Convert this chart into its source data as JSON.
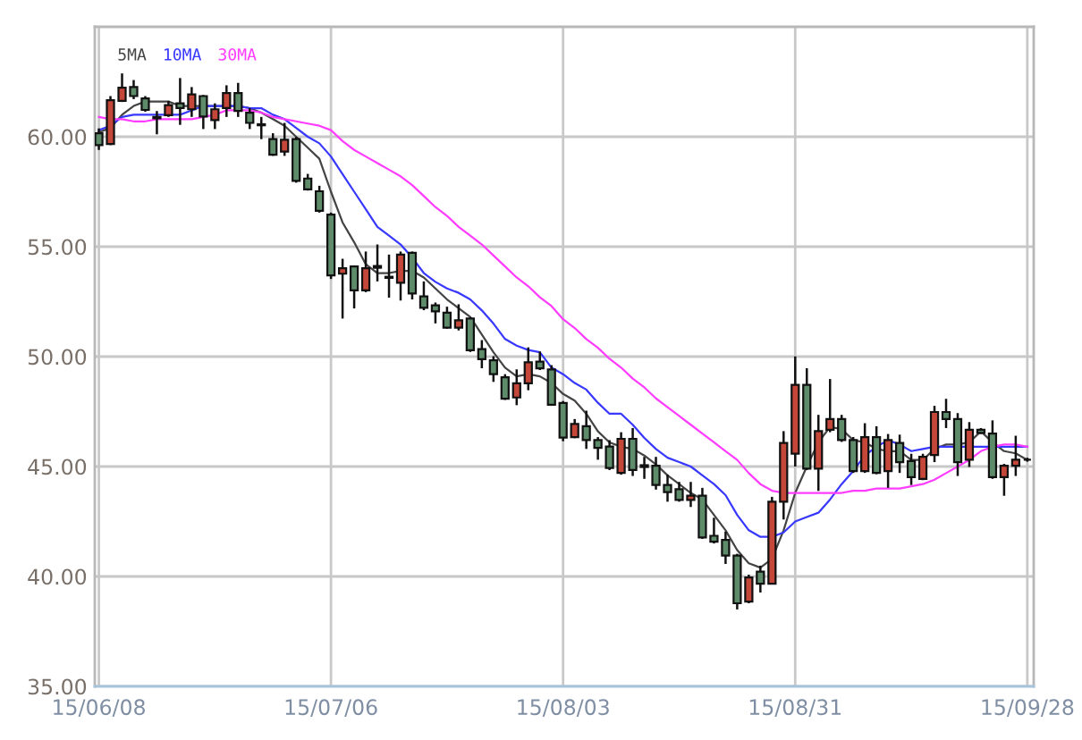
{
  "chart_data": {
    "type": "candlestick",
    "categories": [
      "15/06/08",
      null,
      null,
      null,
      null,
      null,
      null,
      null,
      null,
      null,
      null,
      null,
      null,
      null,
      null,
      null,
      null,
      null,
      null,
      null,
      "15/07/06",
      null,
      null,
      null,
      null,
      null,
      null,
      null,
      null,
      null,
      null,
      null,
      null,
      null,
      null,
      null,
      null,
      null,
      null,
      null,
      "15/08/03",
      null,
      null,
      null,
      null,
      null,
      null,
      null,
      null,
      null,
      null,
      null,
      null,
      null,
      null,
      null,
      null,
      null,
      null,
      null,
      "15/08/31",
      null,
      null,
      null,
      null,
      null,
      null,
      null,
      null,
      null,
      null,
      null,
      null,
      null,
      null,
      null,
      null,
      null,
      null,
      null,
      "15/09/28"
    ],
    "ohlc": [
      [
        60.16,
        60.38,
        59.4,
        59.62
      ],
      [
        59.67,
        61.85,
        59.62,
        61.66
      ],
      [
        61.63,
        62.88,
        61.58,
        62.23
      ],
      [
        62.26,
        62.58,
        61.71,
        61.85
      ],
      [
        61.74,
        61.85,
        61.14,
        61.22
      ],
      [
        60.9,
        61.17,
        60.11,
        60.84
      ],
      [
        60.98,
        61.63,
        60.9,
        61.44
      ],
      [
        61.52,
        62.67,
        60.54,
        61.31
      ],
      [
        61.25,
        62.26,
        60.9,
        61.93
      ],
      [
        61.85,
        61.9,
        60.35,
        60.92
      ],
      [
        60.76,
        61.52,
        60.35,
        61.25
      ],
      [
        61.31,
        62.34,
        60.9,
        61.99
      ],
      [
        61.99,
        62.45,
        60.9,
        61.17
      ],
      [
        61.09,
        61.31,
        60.35,
        60.63
      ],
      [
        60.57,
        60.9,
        59.89,
        60.52
      ],
      [
        59.89,
        60.16,
        59.13,
        59.18
      ],
      [
        59.32,
        60.63,
        59.13,
        59.86
      ],
      [
        59.89,
        60.0,
        57.91,
        57.99
      ],
      [
        58.1,
        58.31,
        57.55,
        57.61
      ],
      [
        57.52,
        57.77,
        56.55,
        56.63
      ],
      [
        56.46,
        56.55,
        53.53,
        53.69
      ],
      [
        53.77,
        54.45,
        51.73,
        54.02
      ],
      [
        54.1,
        54.15,
        52.19,
        53.01
      ],
      [
        53.01,
        54.78,
        52.93,
        54.02
      ],
      [
        54.12,
        55.1,
        53.42,
        54.04
      ],
      [
        53.63,
        54.64,
        52.68,
        53.58
      ],
      [
        53.36,
        54.78,
        52.55,
        54.64
      ],
      [
        54.72,
        54.78,
        52.6,
        52.87
      ],
      [
        52.74,
        53.42,
        52.11,
        52.22
      ],
      [
        52.33,
        52.46,
        51.51,
        52.06
      ],
      [
        52.0,
        52.27,
        51.27,
        51.32
      ],
      [
        51.32,
        52.38,
        51.19,
        51.65
      ],
      [
        51.73,
        51.78,
        50.21,
        50.29
      ],
      [
        50.34,
        50.75,
        49.47,
        49.88
      ],
      [
        49.83,
        50.02,
        48.85,
        49.2
      ],
      [
        49.06,
        49.2,
        48.03,
        48.08
      ],
      [
        48.14,
        49.42,
        47.79,
        48.79
      ],
      [
        48.79,
        50.42,
        48.47,
        49.74
      ],
      [
        49.77,
        50.23,
        49.39,
        49.47
      ],
      [
        49.42,
        49.61,
        47.76,
        47.81
      ],
      [
        47.89,
        47.98,
        46.15,
        46.32
      ],
      [
        46.34,
        47.16,
        46.29,
        46.94
      ],
      [
        46.83,
        47.54,
        45.8,
        46.2
      ],
      [
        46.2,
        46.34,
        45.31,
        45.85
      ],
      [
        45.91,
        46.2,
        44.84,
        44.93
      ],
      [
        44.71,
        46.56,
        44.63,
        46.26
      ],
      [
        46.26,
        46.75,
        44.57,
        44.84
      ],
      [
        45.06,
        45.44,
        44.44,
        44.98
      ],
      [
        45.04,
        45.44,
        43.95,
        44.16
      ],
      [
        44.16,
        44.63,
        43.4,
        43.84
      ],
      [
        43.97,
        44.3,
        43.4,
        43.48
      ],
      [
        43.48,
        44.3,
        43.16,
        43.67
      ],
      [
        43.67,
        44.03,
        41.71,
        41.77
      ],
      [
        41.85,
        42.67,
        41.5,
        41.58
      ],
      [
        41.66,
        42.04,
        40.57,
        40.95
      ],
      [
        40.95,
        41.03,
        38.5,
        38.78
      ],
      [
        38.86,
        40.08,
        38.78,
        39.95
      ],
      [
        40.22,
        40.49,
        39.27,
        39.67
      ],
      [
        39.67,
        43.62,
        39.67,
        43.4
      ],
      [
        43.4,
        46.61,
        42.59,
        46.07
      ],
      [
        45.58,
        50.01,
        45.0,
        48.71
      ],
      [
        48.71,
        49.47,
        44.84,
        44.9
      ],
      [
        44.9,
        47.35,
        43.89,
        46.61
      ],
      [
        46.67,
        48.98,
        46.56,
        47.16
      ],
      [
        47.16,
        47.35,
        46.12,
        46.2
      ],
      [
        46.2,
        46.34,
        44.71,
        44.79
      ],
      [
        44.79,
        46.97,
        44.71,
        46.34
      ],
      [
        46.34,
        46.83,
        44.65,
        44.71
      ],
      [
        44.79,
        46.48,
        44.03,
        46.2
      ],
      [
        46.07,
        46.45,
        44.71,
        45.2
      ],
      [
        45.25,
        45.58,
        44.16,
        44.52
      ],
      [
        44.44,
        45.58,
        44.38,
        45.44
      ],
      [
        45.52,
        47.76,
        45.2,
        47.48
      ],
      [
        47.48,
        48.08,
        46.75,
        47.16
      ],
      [
        47.16,
        47.43,
        44.57,
        45.2
      ],
      [
        45.31,
        47.02,
        44.98,
        46.67
      ],
      [
        46.67,
        46.75,
        46.48,
        46.53
      ],
      [
        46.5,
        47.1,
        44.44,
        44.52
      ],
      [
        44.52,
        45.12,
        43.67,
        45.04
      ],
      [
        45.04,
        46.4,
        44.57,
        45.31
      ],
      [
        45.31,
        45.4,
        45.22,
        45.31
      ]
    ],
    "colors": [
      "#5e8c6b",
      "#c4473a",
      "#c4473a",
      "#5e8c6b",
      "#5e8c6b",
      "#5e8c6b",
      "#c4473a",
      "#5e8c6b",
      "#c4473a",
      "#5e8c6b",
      "#c4473a",
      "#c4473a",
      "#5e8c6b",
      "#5e8c6b",
      "#5e8c6b",
      "#5e8c6b",
      "#c4473a",
      "#5e8c6b",
      "#5e8c6b",
      "#5e8c6b",
      "#5e8c6b",
      "#c4473a",
      "#5e8c6b",
      "#c4473a",
      "#5e8c6b",
      "#5e8c6b",
      "#c4473a",
      "#5e8c6b",
      "#5e8c6b",
      "#5e8c6b",
      "#5e8c6b",
      "#c4473a",
      "#5e8c6b",
      "#5e8c6b",
      "#5e8c6b",
      "#5e8c6b",
      "#c4473a",
      "#c4473a",
      "#5e8c6b",
      "#5e8c6b",
      "#5e8c6b",
      "#c4473a",
      "#5e8c6b",
      "#5e8c6b",
      "#5e8c6b",
      "#c4473a",
      "#5e8c6b",
      "#5e8c6b",
      "#5e8c6b",
      "#5e8c6b",
      "#5e8c6b",
      "#c4473a",
      "#5e8c6b",
      "#5e8c6b",
      "#5e8c6b",
      "#5e8c6b",
      "#c4473a",
      "#5e8c6b",
      "#c4473a",
      "#c4473a",
      "#c4473a",
      "#5e8c6b",
      "#c4473a",
      "#c4473a",
      "#5e8c6b",
      "#5e8c6b",
      "#c4473a",
      "#5e8c6b",
      "#c4473a",
      "#5e8c6b",
      "#5e8c6b",
      "#c4473a",
      "#c4473a",
      "#5e8c6b",
      "#5e8c6b",
      "#c4473a",
      "#5e8c6b",
      "#5e8c6b",
      "#c4473a",
      "#c4473a",
      "#111111"
    ],
    "series": [
      {
        "name": "5MA",
        "type": "line",
        "color": "#444444",
        "values": [
          60.2,
          60.4,
          61.0,
          61.4,
          61.6,
          61.6,
          61.6,
          61.4,
          61.4,
          61.4,
          61.4,
          61.4,
          61.4,
          61.3,
          61.1,
          60.8,
          60.5,
          60.0,
          59.5,
          59.0,
          57.5,
          56.1,
          55.2,
          54.2,
          53.8,
          53.8,
          53.9,
          53.9,
          53.6,
          53.1,
          52.6,
          52.2,
          51.8,
          51.0,
          50.2,
          49.5,
          49.1,
          49.2,
          49.1,
          48.8,
          48.3,
          48.0,
          47.4,
          46.6,
          46.1,
          45.9,
          45.8,
          45.5,
          45.1,
          44.6,
          44.2,
          43.8,
          43.5,
          42.8,
          42.1,
          41.2,
          40.6,
          40.4,
          40.8,
          42.1,
          43.8,
          45.0,
          46.1,
          46.8,
          46.7,
          46.2,
          46.1,
          45.8,
          45.7,
          45.7,
          45.3,
          45.3,
          45.8,
          46.0,
          46.0,
          46.1,
          46.6,
          46.1,
          45.7,
          45.6,
          45.3
        ]
      },
      {
        "name": "10MA",
        "type": "line",
        "color": "#3838ff",
        "values": [
          60.3,
          60.5,
          60.9,
          61.0,
          61.0,
          61.0,
          61.0,
          61.0,
          61.2,
          61.4,
          61.4,
          61.4,
          61.4,
          61.3,
          61.3,
          61.0,
          60.8,
          60.4,
          60.0,
          59.7,
          59.1,
          58.3,
          57.5,
          56.7,
          55.9,
          55.5,
          55.1,
          54.5,
          53.8,
          53.4,
          53.1,
          52.9,
          52.6,
          52.1,
          51.5,
          50.8,
          50.5,
          50.3,
          50.2,
          49.5,
          49.2,
          48.8,
          48.5,
          47.9,
          47.4,
          47.4,
          46.9,
          46.3,
          45.8,
          45.4,
          45.2,
          45.0,
          44.6,
          44.2,
          43.7,
          42.8,
          42.1,
          41.8,
          41.8,
          42.0,
          42.5,
          42.7,
          42.9,
          43.5,
          44.2,
          44.8,
          45.5,
          45.9,
          46.2,
          46.0,
          45.7,
          45.8,
          45.9,
          45.9,
          45.9,
          45.9,
          45.9,
          45.9,
          45.9,
          45.9,
          45.9
        ]
      },
      {
        "name": "30MA",
        "type": "line",
        "color": "#ff3cff",
        "values": [
          60.9,
          60.8,
          60.8,
          60.7,
          60.7,
          60.8,
          60.8,
          60.8,
          60.8,
          60.9,
          61.0,
          61.2,
          61.2,
          61.2,
          61.1,
          60.9,
          60.8,
          60.7,
          60.6,
          60.5,
          60.3,
          59.8,
          59.4,
          59.1,
          58.8,
          58.5,
          58.2,
          57.8,
          57.3,
          56.8,
          56.4,
          55.9,
          55.5,
          55.1,
          54.6,
          54.1,
          53.6,
          53.2,
          52.7,
          52.3,
          51.7,
          51.3,
          50.8,
          50.4,
          49.9,
          49.5,
          49.0,
          48.6,
          48.1,
          47.7,
          47.3,
          46.9,
          46.5,
          46.1,
          45.7,
          45.3,
          44.7,
          44.2,
          43.9,
          43.8,
          43.8,
          43.8,
          43.8,
          43.8,
          43.8,
          43.9,
          43.9,
          44.0,
          44.0,
          44.0,
          44.1,
          44.2,
          44.4,
          44.7,
          45.0,
          45.3,
          45.7,
          45.9,
          46.0,
          46.0,
          45.9
        ]
      }
    ],
    "ylim": [
      35,
      65
    ],
    "yticks": [
      {
        "value": 35,
        "label": "35.00"
      },
      {
        "value": 40,
        "label": "40.00"
      },
      {
        "value": 45,
        "label": "45.00"
      },
      {
        "value": 50,
        "label": "50.00"
      },
      {
        "value": 55,
        "label": "55.00"
      },
      {
        "value": 60,
        "label": "60.00"
      }
    ],
    "grid": true,
    "legend": "top left"
  }
}
